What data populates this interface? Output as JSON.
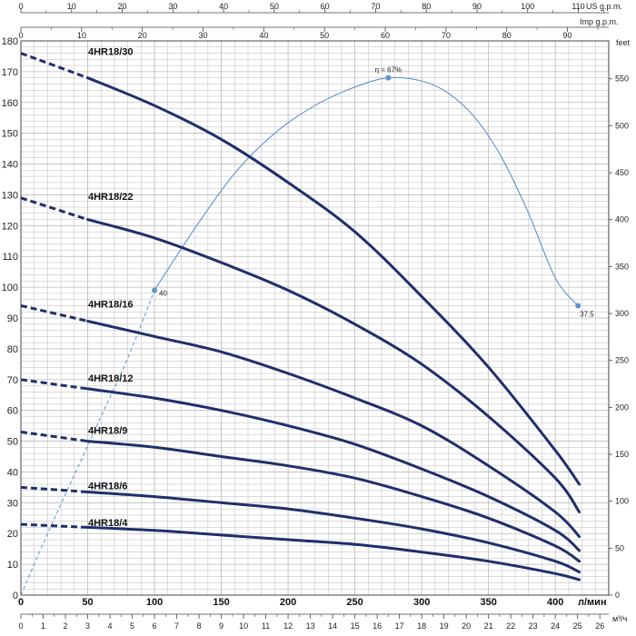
{
  "chart_data": {
    "type": "line",
    "colors": {
      "pump_curve": "#1f2f6b",
      "efficiency_curve": "#5b93cf",
      "grid": "#b9b9b9"
    },
    "axes": {
      "flow_lpm": {
        "unit": "л/мин",
        "range": [
          0,
          440
        ],
        "ticks": [
          0,
          50,
          100,
          150,
          200,
          250,
          300,
          350,
          400
        ]
      },
      "flow_m3h": {
        "unit": "м³/ч",
        "range": [
          0,
          26.4
        ],
        "ticks": [
          0,
          1,
          2,
          3,
          4,
          5,
          6,
          7,
          8,
          9,
          10,
          11,
          12,
          13,
          14,
          15,
          16,
          17,
          18,
          19,
          20,
          21,
          22,
          23,
          24,
          25,
          26
        ]
      },
      "flow_us_gpm": {
        "unit": "US g.p.m.",
        "range": [
          0,
          116
        ],
        "ticks": [
          0,
          10,
          20,
          30,
          40,
          50,
          60,
          70,
          80,
          90,
          100,
          110
        ]
      },
      "flow_imp_gpm": {
        "unit": "Imp g.p.m.",
        "range": [
          0,
          96.8
        ],
        "ticks": [
          0,
          10,
          20,
          30,
          40,
          50,
          60,
          70,
          80,
          90
        ]
      },
      "head_m": {
        "unit": "",
        "range": [
          0,
          180
        ],
        "ticks": [
          0,
          10,
          20,
          30,
          40,
          50,
          60,
          70,
          80,
          90,
          100,
          110,
          120,
          130,
          140,
          150,
          160,
          170,
          180
        ]
      },
      "head_ft": {
        "unit": "feet",
        "range": [
          0,
          590.4
        ],
        "ticks": [
          0,
          50,
          100,
          150,
          200,
          250,
          300,
          350,
          400,
          450,
          500,
          550
        ]
      }
    },
    "grid": true,
    "series": [
      {
        "name": "4HR18/30",
        "dashed_end_q": 50,
        "points": [
          [
            0,
            176
          ],
          [
            50,
            168
          ],
          [
            100,
            159
          ],
          [
            150,
            148
          ],
          [
            200,
            134
          ],
          [
            250,
            118
          ],
          [
            300,
            97
          ],
          [
            350,
            74
          ],
          [
            400,
            47
          ],
          [
            418,
            36
          ]
        ]
      },
      {
        "name": "4HR18/22",
        "dashed_end_q": 50,
        "points": [
          [
            0,
            129
          ],
          [
            50,
            122
          ],
          [
            100,
            116
          ],
          [
            150,
            108
          ],
          [
            200,
            99
          ],
          [
            250,
            88
          ],
          [
            300,
            75
          ],
          [
            350,
            58
          ],
          [
            400,
            38
          ],
          [
            418,
            27
          ]
        ]
      },
      {
        "name": "4HR18/16",
        "dashed_end_q": 50,
        "points": [
          [
            0,
            94
          ],
          [
            50,
            89
          ],
          [
            100,
            84
          ],
          [
            150,
            79
          ],
          [
            200,
            72
          ],
          [
            250,
            64
          ],
          [
            300,
            55
          ],
          [
            350,
            42
          ],
          [
            400,
            27
          ],
          [
            418,
            19
          ]
        ]
      },
      {
        "name": "4HR18/12",
        "dashed_end_q": 50,
        "points": [
          [
            0,
            70
          ],
          [
            50,
            67
          ],
          [
            100,
            64
          ],
          [
            150,
            60
          ],
          [
            200,
            55
          ],
          [
            250,
            49
          ],
          [
            300,
            41
          ],
          [
            350,
            32
          ],
          [
            400,
            21
          ],
          [
            418,
            14.5
          ]
        ]
      },
      {
        "name": "4HR18/9",
        "dashed_end_q": 50,
        "points": [
          [
            0,
            53
          ],
          [
            50,
            50
          ],
          [
            100,
            48
          ],
          [
            150,
            45
          ],
          [
            200,
            42
          ],
          [
            250,
            38
          ],
          [
            300,
            32
          ],
          [
            350,
            25
          ],
          [
            400,
            16
          ],
          [
            418,
            11
          ]
        ]
      },
      {
        "name": "4HR18/6",
        "dashed_end_q": 50,
        "points": [
          [
            0,
            35
          ],
          [
            50,
            33.5
          ],
          [
            100,
            32
          ],
          [
            150,
            30
          ],
          [
            200,
            28
          ],
          [
            250,
            25
          ],
          [
            300,
            21.5
          ],
          [
            350,
            17
          ],
          [
            400,
            11
          ],
          [
            418,
            7.5
          ]
        ]
      },
      {
        "name": "4HR18/4",
        "dashed_end_q": 50,
        "points": [
          [
            0,
            23
          ],
          [
            50,
            22
          ],
          [
            100,
            21
          ],
          [
            150,
            19.5
          ],
          [
            200,
            18
          ],
          [
            250,
            16.5
          ],
          [
            300,
            14
          ],
          [
            350,
            11
          ],
          [
            400,
            7
          ],
          [
            418,
            5
          ]
        ]
      }
    ],
    "efficiency": {
      "dashed_until_q": 100,
      "points": [
        [
          0,
          0
        ],
        [
          20,
          20
        ],
        [
          40,
          39
        ],
        [
          60,
          58
        ],
        [
          80,
          77
        ],
        [
          100,
          99
        ],
        [
          130,
          119
        ],
        [
          160,
          137
        ],
        [
          190,
          150
        ],
        [
          220,
          159
        ],
        [
          250,
          165
        ],
        [
          275,
          168
        ],
        [
          300,
          167
        ],
        [
          320,
          163
        ],
        [
          340,
          155
        ],
        [
          360,
          142
        ],
        [
          380,
          124
        ],
        [
          400,
          103
        ],
        [
          417,
          94
        ]
      ],
      "markers": [
        {
          "q": 100,
          "h": 99,
          "label": "40"
        },
        {
          "q": 275,
          "h": 168,
          "label": "η = 67%"
        },
        {
          "q": 417,
          "h": 94,
          "label": "37.5"
        }
      ]
    }
  }
}
